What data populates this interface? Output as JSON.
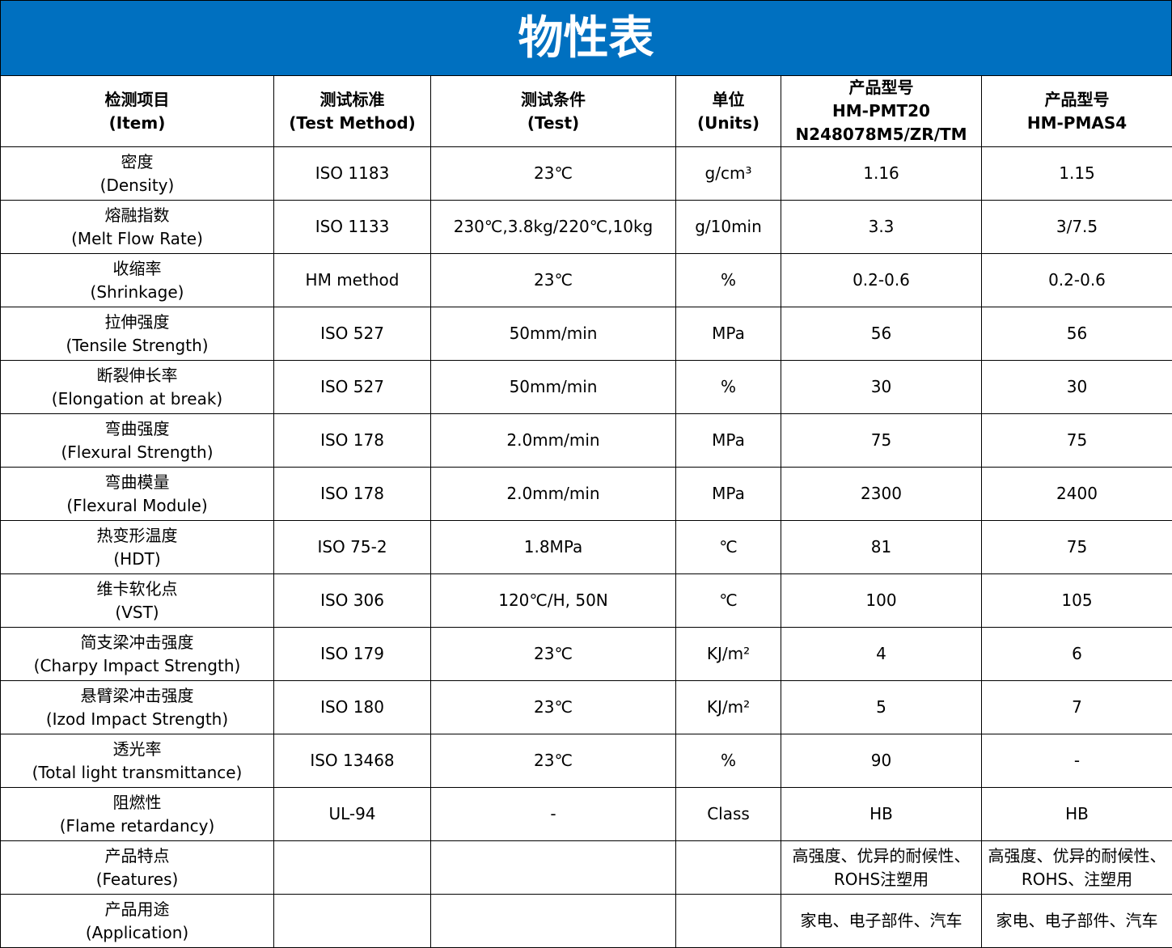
{
  "header": {
    "title": "物性表"
  },
  "table": {
    "columns": [
      [
        "检测项目",
        "(Item)"
      ],
      [
        "测试标准",
        "(Test Method)"
      ],
      [
        "测试条件",
        "(Test)"
      ],
      [
        "单位",
        "(Units)"
      ],
      [
        "产品型号",
        "HM-PMT20",
        "N248078M5/ZR/TM"
      ],
      [
        "产品型号",
        "HM-PMAS4"
      ]
    ],
    "rows": [
      [
        [
          "密度",
          "(Density)"
        ],
        [
          "ISO 1183"
        ],
        [
          "23℃"
        ],
        [
          "g/cm³"
        ],
        [
          "1.16"
        ],
        [
          "1.15"
        ]
      ],
      [
        [
          "熔融指数",
          "(Melt Flow Rate)"
        ],
        [
          "ISO 1133"
        ],
        [
          "230℃,3.8kg/220℃,10kg"
        ],
        [
          "g/10min"
        ],
        [
          "3.3"
        ],
        [
          "3/7.5"
        ]
      ],
      [
        [
          "收缩率",
          "(Shrinkage)"
        ],
        [
          "HM method"
        ],
        [
          "23℃"
        ],
        [
          "%"
        ],
        [
          "0.2-0.6"
        ],
        [
          "0.2-0.6"
        ]
      ],
      [
        [
          "拉伸强度",
          "(Tensile Strength)"
        ],
        [
          "ISO 527"
        ],
        [
          "50mm/min"
        ],
        [
          "MPa"
        ],
        [
          "56"
        ],
        [
          "56"
        ]
      ],
      [
        [
          "断裂伸长率",
          "(Elongation at break)"
        ],
        [
          "ISO 527"
        ],
        [
          "50mm/min"
        ],
        [
          "%"
        ],
        [
          "30"
        ],
        [
          "30"
        ]
      ],
      [
        [
          "弯曲强度",
          "(Flexural Strength)"
        ],
        [
          "ISO 178"
        ],
        [
          "2.0mm/min"
        ],
        [
          "MPa"
        ],
        [
          "75"
        ],
        [
          "75"
        ]
      ],
      [
        [
          "弯曲模量",
          "(Flexural Module)"
        ],
        [
          "ISO 178"
        ],
        [
          "2.0mm/min"
        ],
        [
          "MPa"
        ],
        [
          "2300"
        ],
        [
          "2400"
        ]
      ],
      [
        [
          "热变形温度",
          "(HDT)"
        ],
        [
          "ISO 75-2"
        ],
        [
          "1.8MPa"
        ],
        [
          "℃"
        ],
        [
          "81"
        ],
        [
          "75"
        ]
      ],
      [
        [
          "维卡软化点",
          "(VST)"
        ],
        [
          "ISO 306"
        ],
        [
          "120℃/H, 50N"
        ],
        [
          "℃"
        ],
        [
          "100"
        ],
        [
          "105"
        ]
      ],
      [
        [
          "简支梁冲击强度",
          "(Charpy Impact Strength)"
        ],
        [
          "ISO 179"
        ],
        [
          "23℃"
        ],
        [
          "KJ/m²"
        ],
        [
          "4"
        ],
        [
          "6"
        ]
      ],
      [
        [
          "悬臂梁冲击强度",
          "(Izod Impact Strength)"
        ],
        [
          "ISO 180"
        ],
        [
          "23℃"
        ],
        [
          "KJ/m²"
        ],
        [
          "5"
        ],
        [
          "7"
        ]
      ],
      [
        [
          "透光率",
          "(Total light transmittance)"
        ],
        [
          "ISO 13468"
        ],
        [
          "23℃"
        ],
        [
          "%"
        ],
        [
          "90"
        ],
        [
          "-"
        ]
      ],
      [
        [
          "阻燃性",
          "(Flame retardancy)"
        ],
        [
          "UL-94"
        ],
        [
          "-"
        ],
        [
          "Class"
        ],
        [
          "HB"
        ],
        [
          "HB"
        ]
      ],
      [
        [
          "产品特点",
          "(Features)"
        ],
        null,
        null,
        null,
        [
          "高强度、优异的耐候性、ROHS注塑用"
        ],
        [
          "高强度、优异的耐候性、ROHS、注塑用"
        ]
      ],
      [
        [
          "产品用途",
          "(Application)"
        ],
        null,
        null,
        null,
        [
          "家电、电子部件、汽车"
        ],
        [
          "家电、电子部件、汽车"
        ]
      ]
    ]
  }
}
